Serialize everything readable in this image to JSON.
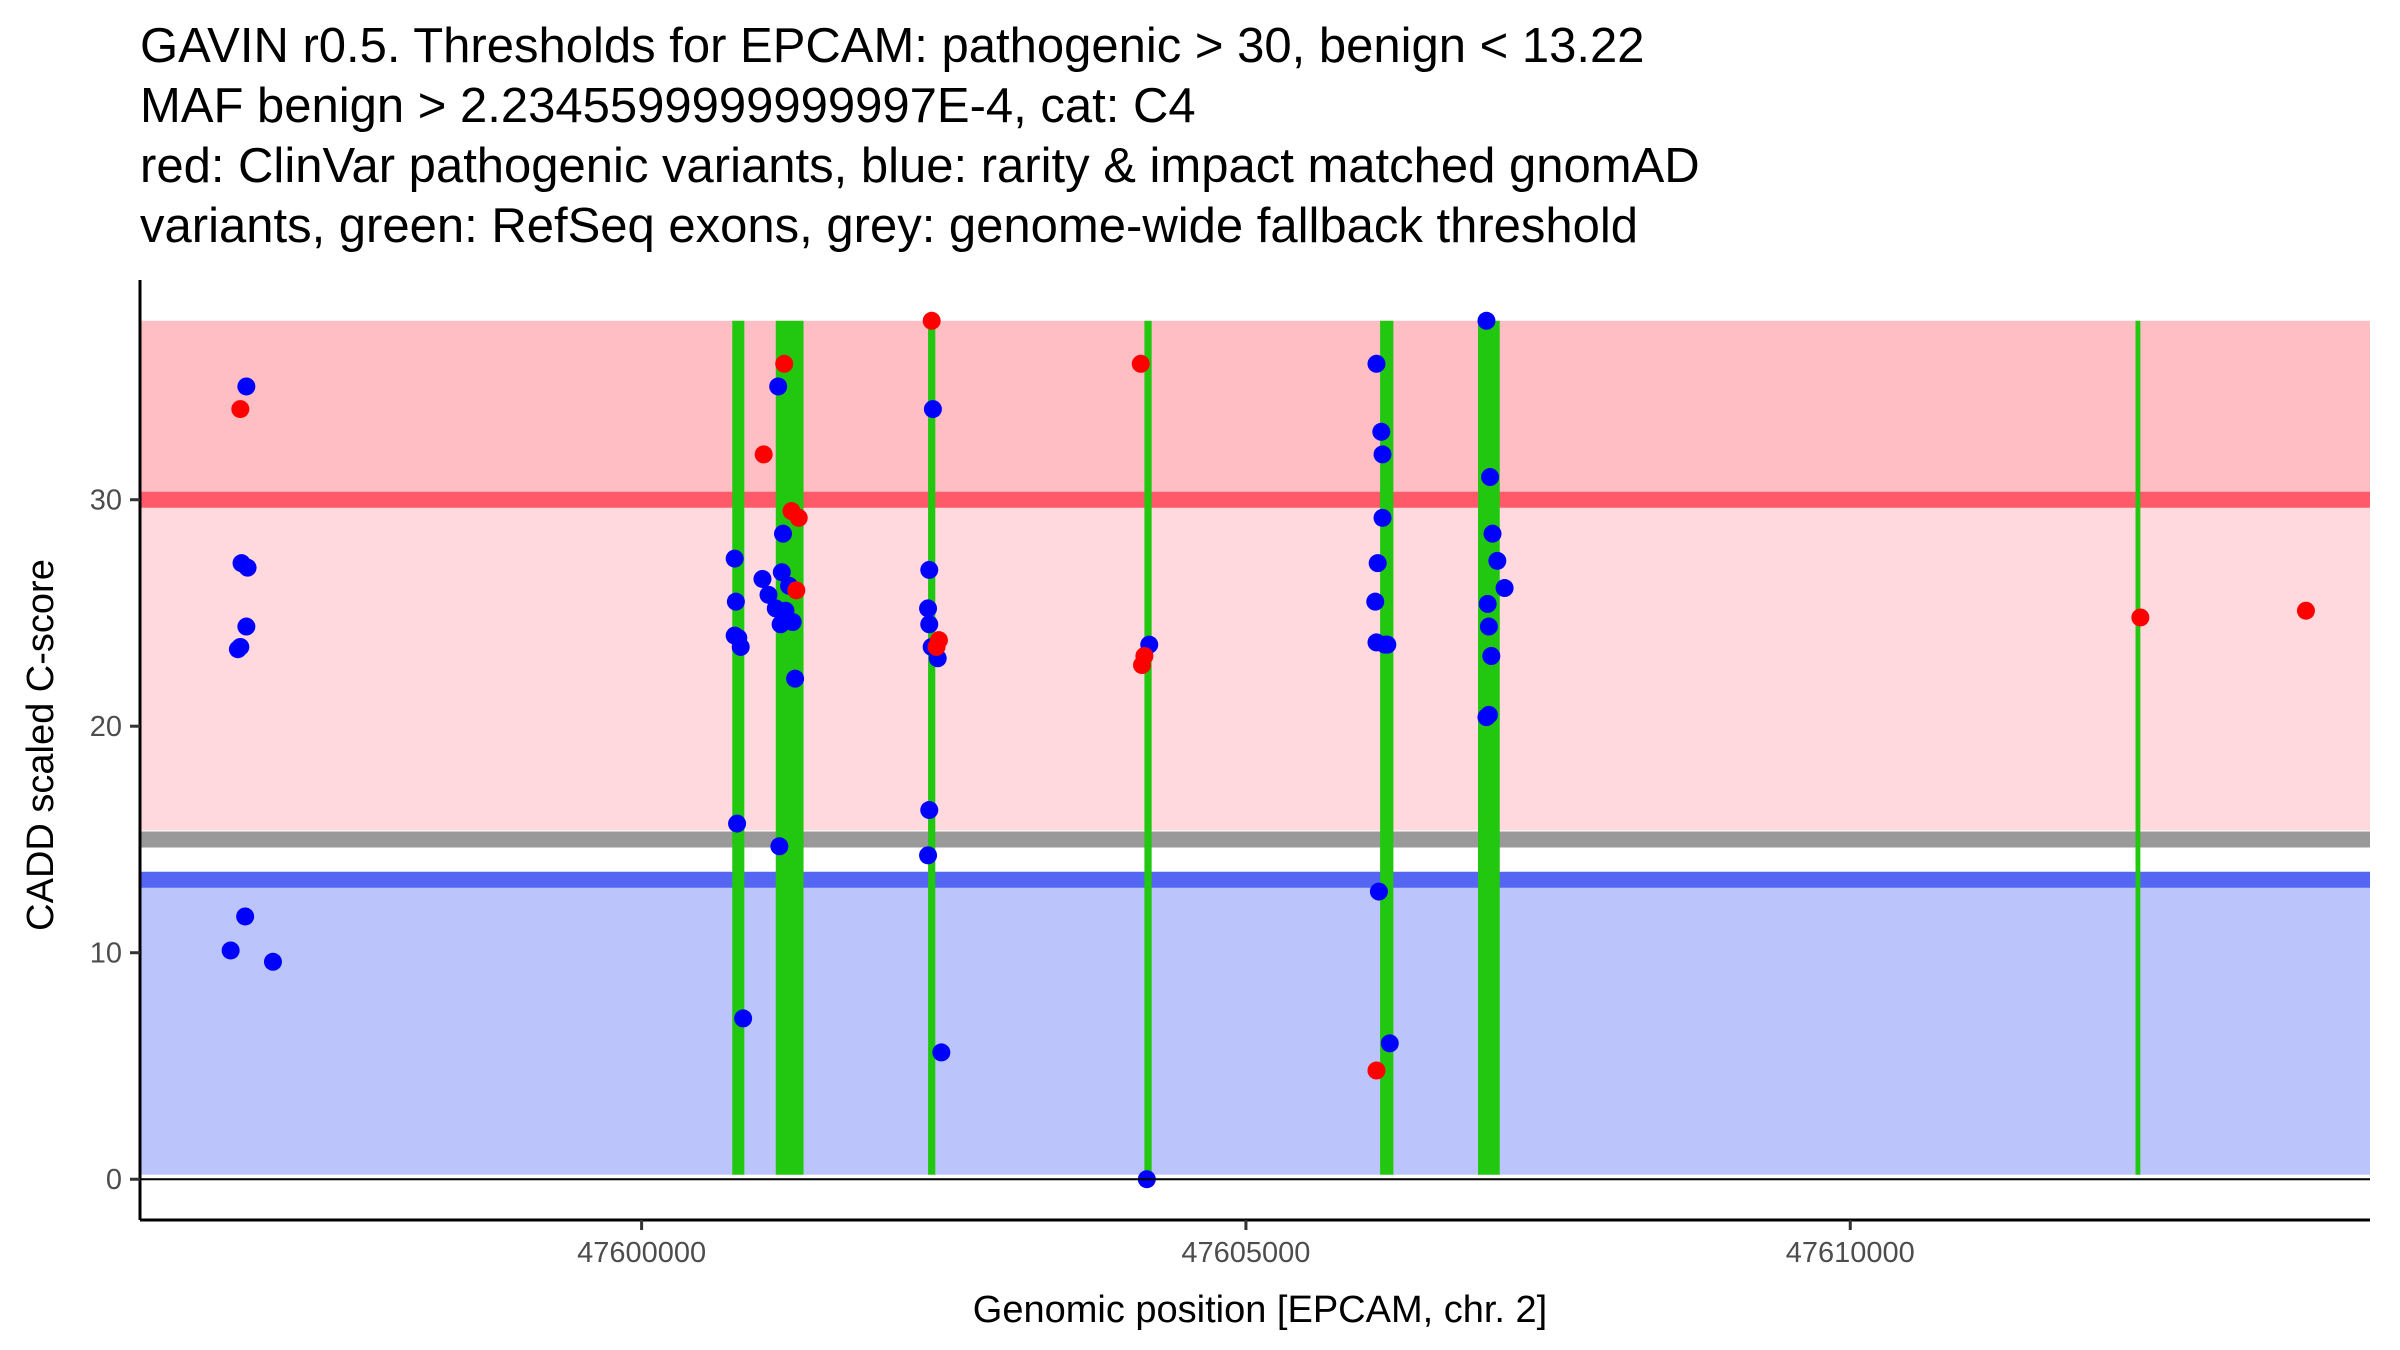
{
  "chart_data": {
    "type": "scatter",
    "title_lines": [
      "GAVIN r0.5. Thresholds for EPCAM: pathogenic > 30, benign < 13.22",
      "MAF benign > 2.2345599999999997E-4, cat: C4",
      "red: ClinVar pathogenic variants, blue: rarity & impact matched gnomAD",
      "variants, green: RefSeq exons, grey: genome-wide fallback threshold"
    ],
    "xlabel": "Genomic position [EPCAM, chr. 2]",
    "ylabel": "CADD scaled C-score",
    "xlim": [
      47595850,
      47614300
    ],
    "ylim": [
      -1.8,
      39.7
    ],
    "xticks": [
      47600000,
      47605000,
      47610000
    ],
    "xtick_labels": [
      "47600000",
      "47605000",
      "47610000"
    ],
    "yticks": [
      0,
      10,
      20,
      30
    ],
    "ytick_labels": [
      "0",
      "10",
      "20",
      "30"
    ],
    "grid": false,
    "colors": {
      "pathogenic_region": "#ffd9de",
      "pathogenic_region_high": "#ffbdc4",
      "benign_region": "#bbc4fb",
      "pathogenic_line": "#ff5a6a",
      "benign_line": "#5566f2",
      "fallback_line": "#999999",
      "exon": "#22c80f",
      "pathogenic_point": "#ff0000",
      "benign_point": "#0000ff"
    },
    "regions": {
      "x_start": 47595850,
      "x_end": 47614300,
      "pathogenic_high": [
        30,
        37.9
      ],
      "pathogenic": [
        15.4,
        30
      ],
      "benign": [
        0.2,
        13.22
      ]
    },
    "thresholds": {
      "pathogenic": 30,
      "benign": 13.22,
      "fallback": 15.0
    },
    "exons": [
      [
        47600750,
        47600850
      ],
      [
        47601110,
        47601340
      ],
      [
        47602370,
        47602430
      ],
      [
        47604160,
        47604220
      ],
      [
        47606110,
        47606220
      ],
      [
        47606920,
        47607100
      ],
      [
        47612360,
        47612400
      ]
    ],
    "series": [
      {
        "name": "ClinVar pathogenic variants",
        "color": "#ff0000",
        "x": [
          47596680,
          47601010,
          47601180,
          47601240,
          47601280,
          47601300,
          47602400,
          47602440,
          47602460,
          47604130,
          47604140,
          47604160,
          47606080,
          47612400,
          47613770
        ],
        "y": [
          34.0,
          32.0,
          36.0,
          29.5,
          26.0,
          29.2,
          37.9,
          23.5,
          23.8,
          36.0,
          22.7,
          23.1,
          4.8,
          24.8,
          25.1
        ]
      },
      {
        "name": "rarity & impact matched gnomAD variants",
        "color": "#0000ff",
        "x": [
          47596730,
          47596690,
          47596740,
          47596730,
          47596660,
          47596680,
          47596720,
          47596600,
          47596950,
          47600770,
          47600780,
          47600770,
          47600800,
          47600820,
          47600790,
          47600840,
          47601000,
          47601050,
          47601110,
          47601160,
          47601170,
          47601220,
          47601150,
          47601170,
          47601190,
          47601250,
          47601270,
          47601140,
          47601130,
          47602380,
          47602410,
          47602370,
          47602380,
          47602400,
          47602450,
          47602380,
          47602370,
          47602480,
          47604200,
          47604180,
          47606090,
          47606070,
          47606080,
          47606150,
          47606170,
          47606100,
          47606130,
          47606080,
          47606130,
          47606120,
          47606190,
          47606990,
          47607020,
          47607040,
          47607080,
          47607140,
          47607000,
          47607010,
          47607030,
          47606990,
          47607010
        ],
        "y": [
          35.0,
          27.2,
          27.0,
          24.4,
          23.4,
          23.5,
          11.6,
          10.1,
          9.6,
          27.4,
          25.5,
          24.0,
          23.9,
          23.5,
          15.7,
          7.1,
          26.5,
          25.8,
          25.2,
          26.8,
          28.5,
          26.2,
          24.5,
          24.6,
          25.1,
          24.6,
          22.1,
          14.7,
          35.0,
          26.9,
          34.0,
          25.2,
          24.5,
          23.5,
          23.0,
          16.3,
          14.3,
          5.6,
          23.6,
          0.0,
          27.2,
          25.5,
          23.7,
          23.6,
          23.6,
          12.7,
          29.2,
          36.0,
          32.0,
          33.0,
          6.0,
          37.9,
          31.0,
          28.5,
          27.3,
          26.1,
          25.4,
          24.4,
          23.1,
          20.4,
          20.5
        ]
      }
    ]
  }
}
